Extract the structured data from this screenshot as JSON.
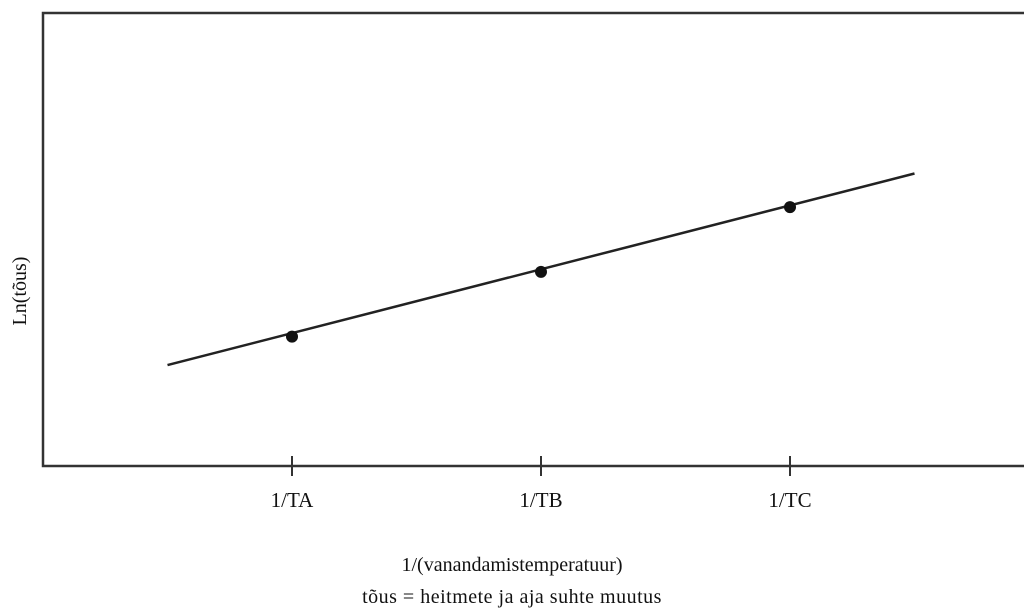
{
  "chart_data": {
    "type": "line",
    "ylabel": "Ln(tõus)",
    "xlabel": "1/(vanandamistemperatuur)",
    "caption": "tõus = heitmete ja aja suhte muutus",
    "categories": [
      "1/TA",
      "1/TB",
      "1/TC"
    ],
    "points": [
      {
        "x": "1/TA",
        "y": 1.0
      },
      {
        "x": "1/TB",
        "y": 2.0
      },
      {
        "x": "1/TC",
        "y": 3.0
      }
    ],
    "trend_line": {
      "x_start": 0.5,
      "x_end": 3.5,
      "y_start": 0.56,
      "y_end": 3.52
    },
    "x_range": [
      0,
      4.0
    ],
    "y_range": [
      -1.0,
      6.0
    ],
    "grid": false,
    "colors": {
      "line": "#222222",
      "marker": "#111111",
      "axis": "#333333"
    }
  }
}
